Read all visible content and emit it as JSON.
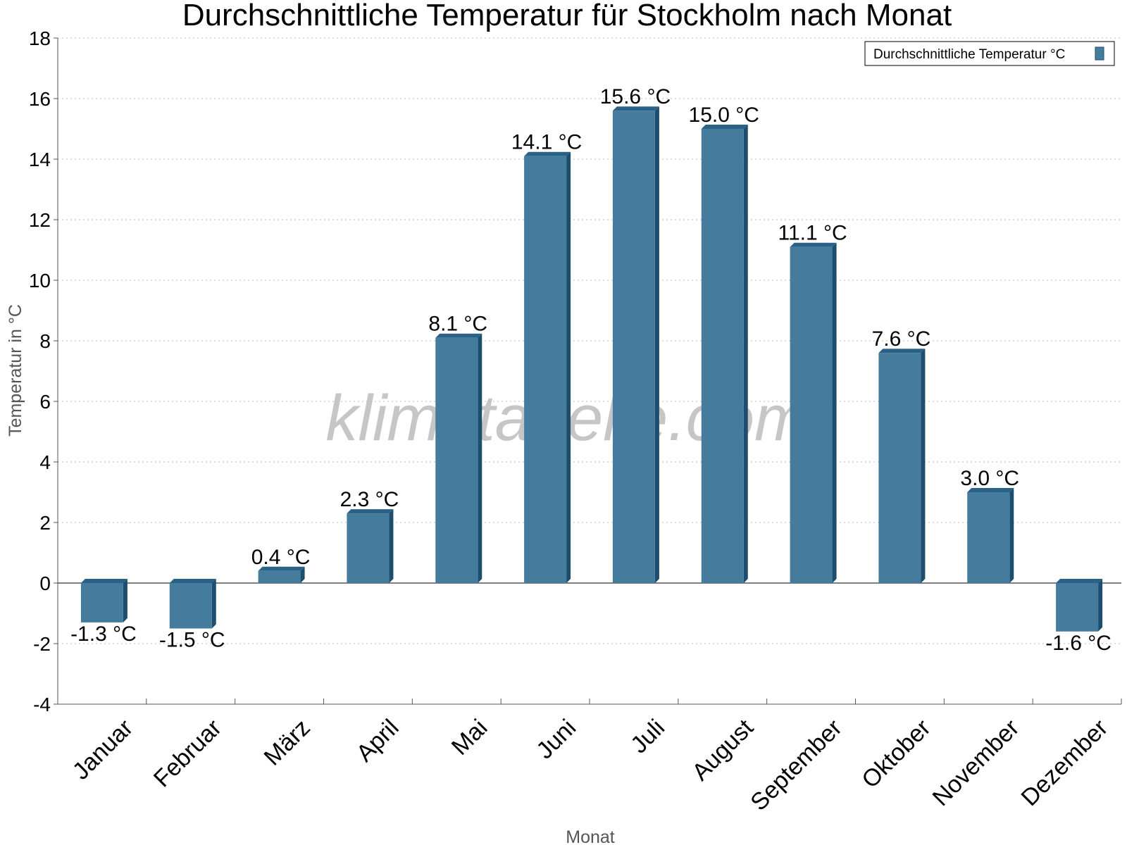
{
  "chart_data": {
    "type": "bar",
    "title": "Durchschnittliche Temperatur für Stockholm nach Monat",
    "xlabel": "Monat",
    "ylabel": "Temperatur in °C",
    "ylim": [
      -4,
      18
    ],
    "yticks": [
      -4,
      -2,
      0,
      2,
      4,
      6,
      8,
      10,
      12,
      14,
      16,
      18
    ],
    "grid": true,
    "legend_position": "top-right",
    "watermark": "klimatabelle.com",
    "categories": [
      "Januar",
      "Februar",
      "März",
      "April",
      "Mai",
      "Juni",
      "Juli",
      "August",
      "September",
      "Oktober",
      "November",
      "Dezember"
    ],
    "series": [
      {
        "name": "Durchschnittliche Temperatur °C",
        "values": [
          -1.3,
          -1.5,
          0.4,
          2.3,
          8.1,
          14.1,
          15.6,
          15.0,
          11.1,
          7.6,
          3.0,
          -1.6
        ],
        "labels": [
          "-1.3 °C",
          "-1.5 °C",
          "0.4 °C",
          "2.3 °C",
          "8.1 °C",
          "14.1 °C",
          "15.6 °C",
          "15.0 °C",
          "11.1 °C",
          "7.6 °C",
          "3.0 °C",
          "-1.6 °C"
        ]
      }
    ],
    "colors": {
      "bar_front": "#457b9d",
      "bar_side": "#1d4e6e",
      "bar_top": "#2a6287"
    }
  }
}
